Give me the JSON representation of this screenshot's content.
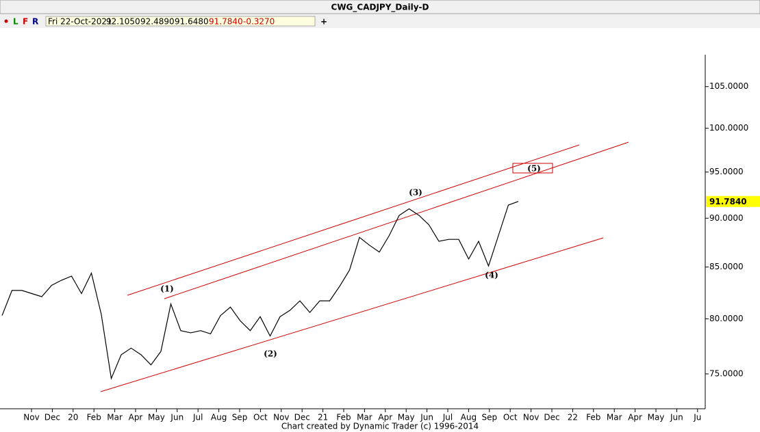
{
  "window_title": "CWG_CADJPY_Daily-D",
  "toolbar": {
    "buttons": [
      "L",
      "F",
      "R"
    ],
    "info": [
      "Fri 22-Oct-2021",
      "92.1050",
      "92.4890",
      "91.6480",
      "91.7840",
      "-0.3270"
    ],
    "add": "+"
  },
  "footer": "Chart created by Dynamic Trader  (c) 1996-2014",
  "chart_data": {
    "type": "line",
    "x_tick_labels": [
      "Nov",
      "Dec",
      "20",
      "Feb",
      "Mar",
      "Apr",
      "May",
      "Jun",
      "Jul",
      "Aug",
      "Sep",
      "Oct",
      "Nov",
      "Dec",
      "21",
      "Feb",
      "Mar",
      "Apr",
      "May",
      "Jun",
      "Jul",
      "Aug",
      "Sep",
      "Oct",
      "Nov",
      "Dec",
      "22",
      "Feb",
      "Mar",
      "Apr",
      "May",
      "Jun",
      "Ju"
    ],
    "series": [
      {
        "name": "CADJPY",
        "color": "#000000",
        "values": [
          80.3,
          82.7,
          82.7,
          82.4,
          82.1,
          83.2,
          83.7,
          84.1,
          82.4,
          84.4,
          80.4,
          74.6,
          76.7,
          77.3,
          76.7,
          75.8,
          77.0,
          81.4,
          78.9,
          78.7,
          78.9,
          78.6,
          80.3,
          81.1,
          79.8,
          78.9,
          80.2,
          78.4,
          80.2,
          80.8,
          81.7,
          80.6,
          81.7,
          81.7,
          83.1,
          84.7,
          88.0,
          87.2,
          86.5,
          88.2,
          90.3,
          91.0,
          90.3,
          89.3,
          87.6,
          87.8,
          87.8,
          85.8,
          87.6,
          85.1,
          88.2,
          91.4,
          91.784
        ]
      }
    ],
    "ylim": [
      72,
      109
    ],
    "log_scale": true,
    "yticks": [
      {
        "value": 75,
        "label": "75.0000"
      },
      {
        "value": 80,
        "label": "80.0000"
      },
      {
        "value": 85,
        "label": "85.0000"
      },
      {
        "value": 90,
        "label": "90.0000"
      },
      {
        "value": 95,
        "label": "95.0000"
      },
      {
        "value": 100,
        "label": "100.0000"
      },
      {
        "value": 105,
        "label": "105.0000"
      }
    ],
    "last_price": {
      "value": 91.784,
      "label": "91.7840",
      "color": "#ffff00"
    },
    "annotations": [
      "(1)",
      "(2)",
      "(3)",
      "(4)",
      "(5)"
    ]
  }
}
